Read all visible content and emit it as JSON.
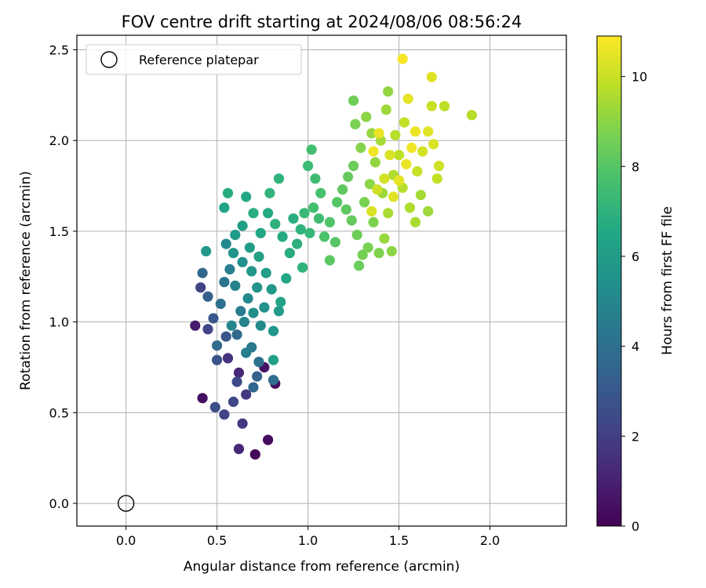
{
  "chart_data": {
    "type": "scatter",
    "title": "FOV centre drift starting at 2024/08/06 08:56:24",
    "xlabel": "Angular distance from reference (arcmin)",
    "ylabel": "Rotation from reference (arcmin)",
    "xlim": [
      -0.27,
      2.42
    ],
    "ylim": [
      -0.125,
      2.58
    ],
    "xticks": [
      "0.0",
      "0.5",
      "1.0",
      "1.5",
      "2.0"
    ],
    "xtick_values": [
      0,
      0.5,
      1.0,
      1.5,
      2.0
    ],
    "yticks": [
      "0.0",
      "0.5",
      "1.0",
      "1.5",
      "2.0",
      "2.5"
    ],
    "ytick_values": [
      0,
      0.5,
      1.0,
      1.5,
      2.0,
      2.5
    ],
    "grid": true,
    "legend": {
      "position": "top-left",
      "entries": [
        "Reference platepar"
      ]
    },
    "colorbar": {
      "label": "Hours from first FF file",
      "range": [
        0,
        10.9
      ],
      "ticks": [
        "0",
        "2",
        "4",
        "6",
        "8",
        "10"
      ],
      "tick_values": [
        0,
        2,
        4,
        6,
        8,
        10
      ],
      "colormap": "viridis"
    },
    "reference_point": {
      "x": 0.0,
      "y": 0.0
    },
    "series": [
      {
        "name": "FOV centre drift",
        "points": [
          [
            0.71,
            0.27,
            0.2
          ],
          [
            0.78,
            0.35,
            0.3
          ],
          [
            0.62,
            0.3,
            1.2
          ],
          [
            0.64,
            0.44,
            1.8
          ],
          [
            0.54,
            0.49,
            2.1
          ],
          [
            0.49,
            0.53,
            2.6
          ],
          [
            0.42,
            0.58,
            0.4
          ],
          [
            0.38,
            0.98,
            0.8
          ],
          [
            0.82,
            0.66,
            0.3
          ],
          [
            0.76,
            0.75,
            0.6
          ],
          [
            0.62,
            0.72,
            1.2
          ],
          [
            0.66,
            0.6,
            1.8
          ],
          [
            0.59,
            0.56,
            2.3
          ],
          [
            0.61,
            0.67,
            2.4
          ],
          [
            0.5,
            0.79,
            2.8
          ],
          [
            0.56,
            0.8,
            1.6
          ],
          [
            0.45,
            0.96,
            2.2
          ],
          [
            0.41,
            1.19,
            2.1
          ],
          [
            0.55,
            0.92,
            2.9
          ],
          [
            0.7,
            0.64,
            3.6
          ],
          [
            0.81,
            0.68,
            3.9
          ],
          [
            0.72,
            0.7,
            3.4
          ],
          [
            0.73,
            0.78,
            4.0
          ],
          [
            0.69,
            0.86,
            4.3
          ],
          [
            0.5,
            0.87,
            3.8
          ],
          [
            0.48,
            1.02,
            3.0
          ],
          [
            0.42,
            1.27,
            3.6
          ],
          [
            0.45,
            1.14,
            3.3
          ],
          [
            0.52,
            1.1,
            4.1
          ],
          [
            0.54,
            1.22,
            4.2
          ],
          [
            0.57,
            1.29,
            4.6
          ],
          [
            0.6,
            1.2,
            4.8
          ],
          [
            0.63,
            1.06,
            4.5
          ],
          [
            0.65,
            1.0,
            4.9
          ],
          [
            0.67,
            1.13,
            5.1
          ],
          [
            0.7,
            1.05,
            5.3
          ],
          [
            0.58,
            0.98,
            5.0
          ],
          [
            0.61,
            0.93,
            3.7
          ],
          [
            0.66,
            0.83,
            4.6
          ],
          [
            0.74,
            0.98,
            5.2
          ],
          [
            0.76,
            1.08,
            5.5
          ],
          [
            0.72,
            1.19,
            5.6
          ],
          [
            0.69,
            1.28,
            5.7
          ],
          [
            0.64,
            1.33,
            5.4
          ],
          [
            0.59,
            1.38,
            5.6
          ],
          [
            0.55,
            1.43,
            5.1
          ],
          [
            0.6,
            1.48,
            5.9
          ],
          [
            0.64,
            1.53,
            6.1
          ],
          [
            0.68,
            1.41,
            6.0
          ],
          [
            0.73,
            1.36,
            6.2
          ],
          [
            0.77,
            1.27,
            6.0
          ],
          [
            0.8,
            1.18,
            5.8
          ],
          [
            0.84,
            1.06,
            5.9
          ],
          [
            0.81,
            0.95,
            5.7
          ],
          [
            0.85,
            1.11,
            6.3
          ],
          [
            0.88,
            1.24,
            6.5
          ],
          [
            0.9,
            1.38,
            6.7
          ],
          [
            0.86,
            1.47,
            6.6
          ],
          [
            0.82,
            1.54,
            6.9
          ],
          [
            0.78,
            1.6,
            6.6
          ],
          [
            0.74,
            1.49,
            6.4
          ],
          [
            0.7,
            1.6,
            6.8
          ],
          [
            0.66,
            1.69,
            6.5
          ],
          [
            0.56,
            1.71,
            6.7
          ],
          [
            0.54,
            1.63,
            6.3
          ],
          [
            0.44,
            1.39,
            5.9
          ],
          [
            0.81,
            0.79,
            6.1
          ],
          [
            0.79,
            1.71,
            7.1
          ],
          [
            0.84,
            1.79,
            7.0
          ],
          [
            0.92,
            1.57,
            6.8
          ],
          [
            0.96,
            1.51,
            7.0
          ],
          [
            0.98,
            1.6,
            7.3
          ],
          [
            1.01,
            1.49,
            7.2
          ],
          [
            0.94,
            1.43,
            6.9
          ],
          [
            0.97,
            1.3,
            7.0
          ],
          [
            1.0,
            1.86,
            7.4
          ],
          [
            1.02,
            1.95,
            7.6
          ],
          [
            1.04,
            1.79,
            7.5
          ],
          [
            1.07,
            1.71,
            7.7
          ],
          [
            1.03,
            1.63,
            7.6
          ],
          [
            1.06,
            1.57,
            7.5
          ],
          [
            1.09,
            1.47,
            7.8
          ],
          [
            1.12,
            1.55,
            7.9
          ],
          [
            1.15,
            1.44,
            8.0
          ],
          [
            1.12,
            1.34,
            8.1
          ],
          [
            1.16,
            1.66,
            8.0
          ],
          [
            1.19,
            1.73,
            8.2
          ],
          [
            1.22,
            1.8,
            8.3
          ],
          [
            1.25,
            1.86,
            8.4
          ],
          [
            1.21,
            1.62,
            8.2
          ],
          [
            1.24,
            1.56,
            8.3
          ],
          [
            1.27,
            1.48,
            8.5
          ],
          [
            1.3,
            1.37,
            8.6
          ],
          [
            1.28,
            1.31,
            8.4
          ],
          [
            1.33,
            1.41,
            8.7
          ],
          [
            1.36,
            1.55,
            8.8
          ],
          [
            1.31,
            1.66,
            8.7
          ],
          [
            1.34,
            1.76,
            9.0
          ],
          [
            1.37,
            1.88,
            9.1
          ],
          [
            1.29,
            1.96,
            8.9
          ],
          [
            1.26,
            2.09,
            8.7
          ],
          [
            1.25,
            2.22,
            8.5
          ],
          [
            1.32,
            2.13,
            9.0
          ],
          [
            1.35,
            2.04,
            9.2
          ],
          [
            1.4,
            2.0,
            9.4
          ],
          [
            1.43,
            2.17,
            9.3
          ],
          [
            1.41,
            1.71,
            9.3
          ],
          [
            1.44,
            1.6,
            9.5
          ],
          [
            1.42,
            1.46,
            9.2
          ],
          [
            1.46,
            1.39,
            9.0
          ],
          [
            1.39,
            1.38,
            8.8
          ],
          [
            1.47,
            1.81,
            9.6
          ],
          [
            1.5,
            1.92,
            9.8
          ],
          [
            1.48,
            2.03,
            9.7
          ],
          [
            1.53,
            2.1,
            9.9
          ],
          [
            1.52,
            1.74,
            9.7
          ],
          [
            1.56,
            1.63,
            9.6
          ],
          [
            1.59,
            1.55,
            9.5
          ],
          [
            1.62,
            1.7,
            9.4
          ],
          [
            1.66,
            1.61,
            9.3
          ],
          [
            1.6,
            1.83,
            10.0
          ],
          [
            1.63,
            1.94,
            10.2
          ],
          [
            1.66,
            2.05,
            10.4
          ],
          [
            1.69,
            1.98,
            10.3
          ],
          [
            1.72,
            1.86,
            10.1
          ],
          [
            1.71,
            1.79,
            9.9
          ],
          [
            1.68,
            2.19,
            10.0
          ],
          [
            1.75,
            2.19,
            9.8
          ],
          [
            1.55,
            2.23,
            10.5
          ],
          [
            1.52,
            2.45,
            10.8
          ],
          [
            1.68,
            2.35,
            10.4
          ],
          [
            1.44,
            2.27,
            9.1
          ],
          [
            1.9,
            2.14,
            9.7
          ],
          [
            1.59,
            2.05,
            10.6
          ],
          [
            1.57,
            1.96,
            10.7
          ],
          [
            1.54,
            1.87,
            10.6
          ],
          [
            1.5,
            1.78,
            10.5
          ],
          [
            1.47,
            1.69,
            10.4
          ],
          [
            1.45,
            1.92,
            10.3
          ],
          [
            1.42,
            1.79,
            10.2
          ],
          [
            1.38,
            1.73,
            10.1
          ],
          [
            1.35,
            1.61,
            10.3
          ],
          [
            1.39,
            2.04,
            10.6
          ],
          [
            1.36,
            1.94,
            10.7
          ]
        ]
      }
    ]
  }
}
